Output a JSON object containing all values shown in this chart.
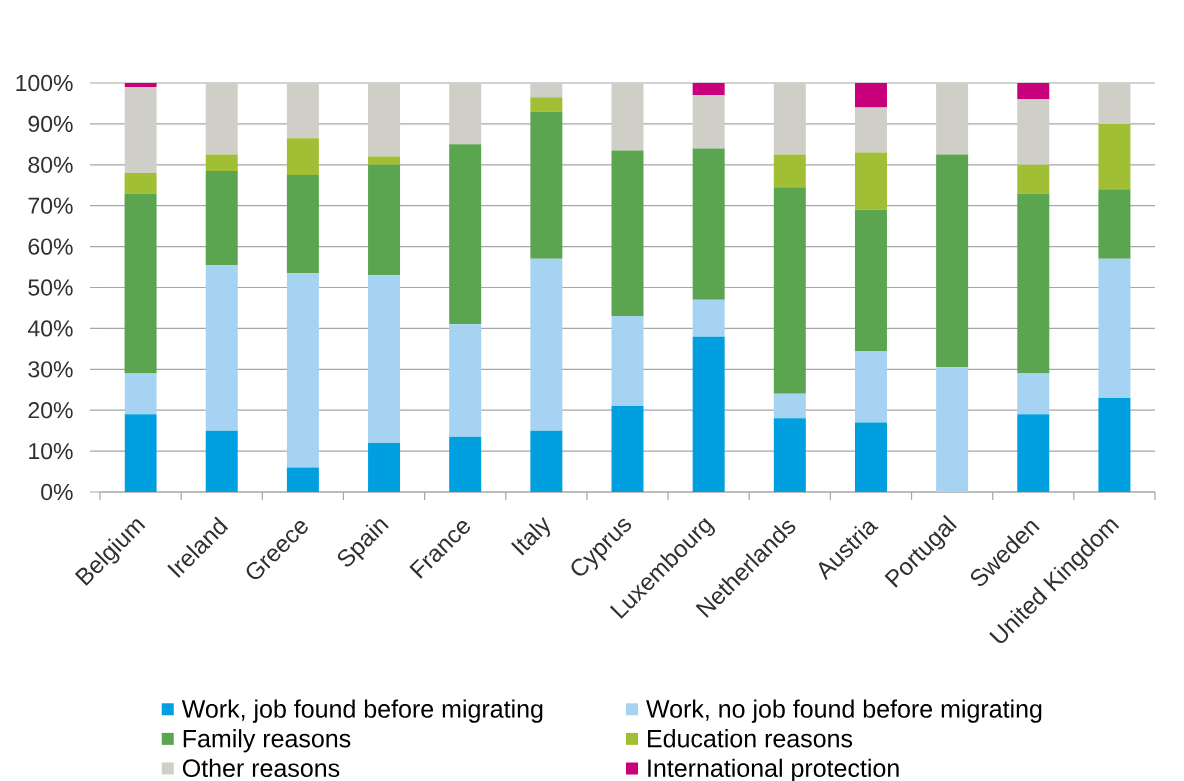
{
  "chart_data": {
    "type": "bar",
    "stacked": true,
    "categories": [
      "Belgium",
      "Ireland",
      "Greece",
      "Spain",
      "France",
      "Italy",
      "Cyprus",
      "Luxembourg",
      "Netherlands",
      "Austria",
      "Portugal",
      "Sweden",
      "United Kingdom"
    ],
    "series": [
      {
        "name": "Work, job found before migrating",
        "color": "#009FDF",
        "values": [
          19,
          15,
          6,
          12,
          13.5,
          15,
          21,
          38,
          18,
          17,
          0,
          19,
          23
        ]
      },
      {
        "name": "Work, no job found before migrating",
        "color": "#A7D3F3",
        "values": [
          10,
          40.5,
          47.5,
          41,
          27.5,
          42,
          22,
          9,
          6,
          17.5,
          30.5,
          10,
          34
        ]
      },
      {
        "name": "Family reasons",
        "color": "#5BA550",
        "values": [
          44,
          23,
          24,
          27,
          44,
          36,
          40.5,
          37,
          50.5,
          34.5,
          52,
          44,
          17
        ]
      },
      {
        "name": "Education reasons",
        "color": "#A1BF34",
        "values": [
          5,
          4,
          9,
          2,
          0,
          3.5,
          0,
          0,
          8,
          14,
          0,
          7,
          16
        ]
      },
      {
        "name": "Other reasons",
        "color": "#CFCFC7",
        "values": [
          21,
          17.5,
          13.5,
          18,
          15,
          3.5,
          16.5,
          13,
          17.5,
          11,
          17.5,
          16,
          10
        ]
      },
      {
        "name": "International protection",
        "color": "#C8007A",
        "values": [
          1,
          0,
          0,
          0,
          0,
          0,
          0,
          3,
          0,
          6,
          0,
          4,
          0
        ]
      }
    ],
    "ylim": [
      0,
      100
    ],
    "yticks": [
      {
        "value": 0,
        "label": "0%"
      },
      {
        "value": 10,
        "label": "10%"
      },
      {
        "value": 20,
        "label": "20%"
      },
      {
        "value": 30,
        "label": "30%"
      },
      {
        "value": 40,
        "label": "40%"
      },
      {
        "value": 50,
        "label": "50%"
      },
      {
        "value": 60,
        "label": "60%"
      },
      {
        "value": 70,
        "label": "70%"
      },
      {
        "value": 80,
        "label": "80%"
      },
      {
        "value": 90,
        "label": "90%"
      },
      {
        "value": 100,
        "label": "100%"
      }
    ],
    "grid": "y",
    "legend": "bottom"
  }
}
